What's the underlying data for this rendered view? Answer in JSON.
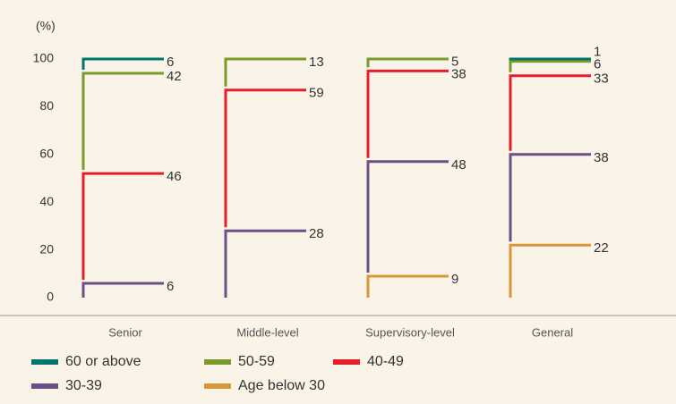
{
  "chart_data": {
    "type": "stacked-bracket",
    "y_axis_label": "(%)",
    "categories": [
      "Senior",
      "Middle-level",
      "Supervisory-level",
      "General"
    ],
    "series": [
      {
        "name": "Age below 30",
        "color": "#d9973a",
        "values": [
          null,
          null,
          9,
          22
        ]
      },
      {
        "name": "30-39",
        "color": "#6b4f86",
        "values": [
          6,
          28,
          48,
          38
        ]
      },
      {
        "name": "40-49",
        "color": "#e3202a",
        "values": [
          46,
          59,
          38,
          33
        ]
      },
      {
        "name": "50-59",
        "color": "#7b9a2a",
        "values": [
          42,
          13,
          5,
          6
        ]
      },
      {
        "name": "60 or above",
        "color": "#00756c",
        "values": [
          6,
          null,
          null,
          1
        ]
      }
    ],
    "legend_order": [
      4,
      3,
      2,
      1,
      0
    ],
    "ylim": [
      0,
      100
    ],
    "yticks": [
      0,
      20,
      40,
      60,
      80,
      100
    ],
    "grid": false
  }
}
